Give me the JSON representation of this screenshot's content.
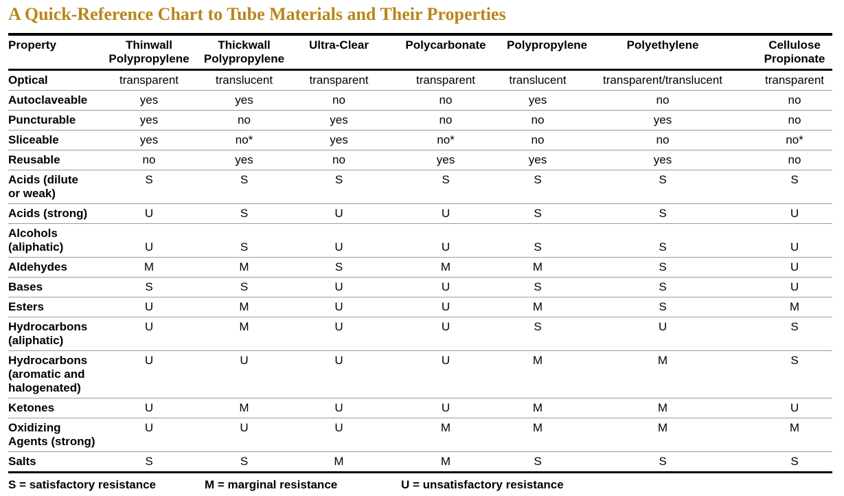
{
  "title": "A Quick-Reference Chart to Tube Materials and Their Properties",
  "columns": [
    {
      "line1": "Property",
      "line2": ""
    },
    {
      "line1": "Thinwall",
      "line2": "Polypropylene"
    },
    {
      "line1": "Thickwall",
      "line2": "Polypropylene"
    },
    {
      "line1": "Ultra-Clear",
      "line2": ""
    },
    {
      "line1": "Polycarbonate",
      "line2": ""
    },
    {
      "line1": "Polypropylene",
      "line2": ""
    },
    {
      "line1": "Polyethylene",
      "line2": ""
    },
    {
      "line1": "Cellulose",
      "line2": "Propionate"
    }
  ],
  "rows": [
    {
      "label": [
        "Optical"
      ],
      "values": [
        "transparent",
        "translucent",
        "transparent",
        "transparent",
        "translucent",
        "transparent/translucent",
        "transparent"
      ]
    },
    {
      "label": [
        "Autoclaveable"
      ],
      "values": [
        "yes",
        "yes",
        "no",
        "no",
        "yes",
        "no",
        "no"
      ]
    },
    {
      "label": [
        "Puncturable"
      ],
      "values": [
        "yes",
        "no",
        "yes",
        "no",
        "no",
        "yes",
        "no"
      ]
    },
    {
      "label": [
        "Sliceable"
      ],
      "values": [
        "yes",
        "no*",
        "yes",
        "no*",
        "no",
        "no",
        "no*"
      ]
    },
    {
      "label": [
        "Reusable"
      ],
      "values": [
        "no",
        "yes",
        "no",
        "yes",
        "yes",
        "yes",
        "no"
      ]
    },
    {
      "label": [
        "Acids (dilute",
        "or weak)"
      ],
      "values": [
        "S",
        "S",
        "S",
        "S",
        "S",
        "S",
        "S"
      ]
    },
    {
      "label": [
        "Acids (strong)"
      ],
      "values": [
        "U",
        "S",
        "U",
        "U",
        "S",
        "S",
        "U"
      ]
    },
    {
      "label": [
        "Alcohols",
        "(aliphatic)"
      ],
      "values": [
        "U",
        "S",
        "U",
        "U",
        "S",
        "S",
        "U"
      ]
    },
    {
      "label": [
        "Aldehydes"
      ],
      "values": [
        "M",
        "M",
        "S",
        "M",
        "M",
        "S",
        "U"
      ]
    },
    {
      "label": [
        "Bases"
      ],
      "values": [
        "S",
        "S",
        "U",
        "U",
        "S",
        "S",
        "U"
      ]
    },
    {
      "label": [
        "Esters"
      ],
      "values": [
        "U",
        "M",
        "U",
        "U",
        "M",
        "S",
        "M"
      ]
    },
    {
      "label": [
        "Hydrocarbons",
        "(aliphatic)"
      ],
      "values": [
        "U",
        "M",
        "U",
        "U",
        "S",
        "U",
        "S"
      ]
    },
    {
      "label": [
        "Hydrocarbons",
        "(aromatic and",
        "halogenated)"
      ],
      "values": [
        "U",
        "U",
        "U",
        "U",
        "M",
        "M",
        "S"
      ]
    },
    {
      "label": [
        "Ketones"
      ],
      "values": [
        "U",
        "M",
        "U",
        "U",
        "M",
        "M",
        "U"
      ]
    },
    {
      "label": [
        "Oxidizing",
        "Agents (strong)"
      ],
      "values": [
        "U",
        "U",
        "U",
        "M",
        "M",
        "M",
        "M"
      ]
    },
    {
      "label": [
        "Salts"
      ],
      "values": [
        "S",
        "S",
        "M",
        "M",
        "S",
        "S",
        "S"
      ]
    }
  ],
  "legend": [
    "S = satisfactory resistance",
    "M = marginal resistance",
    "U = unsatisfactory resistance"
  ]
}
